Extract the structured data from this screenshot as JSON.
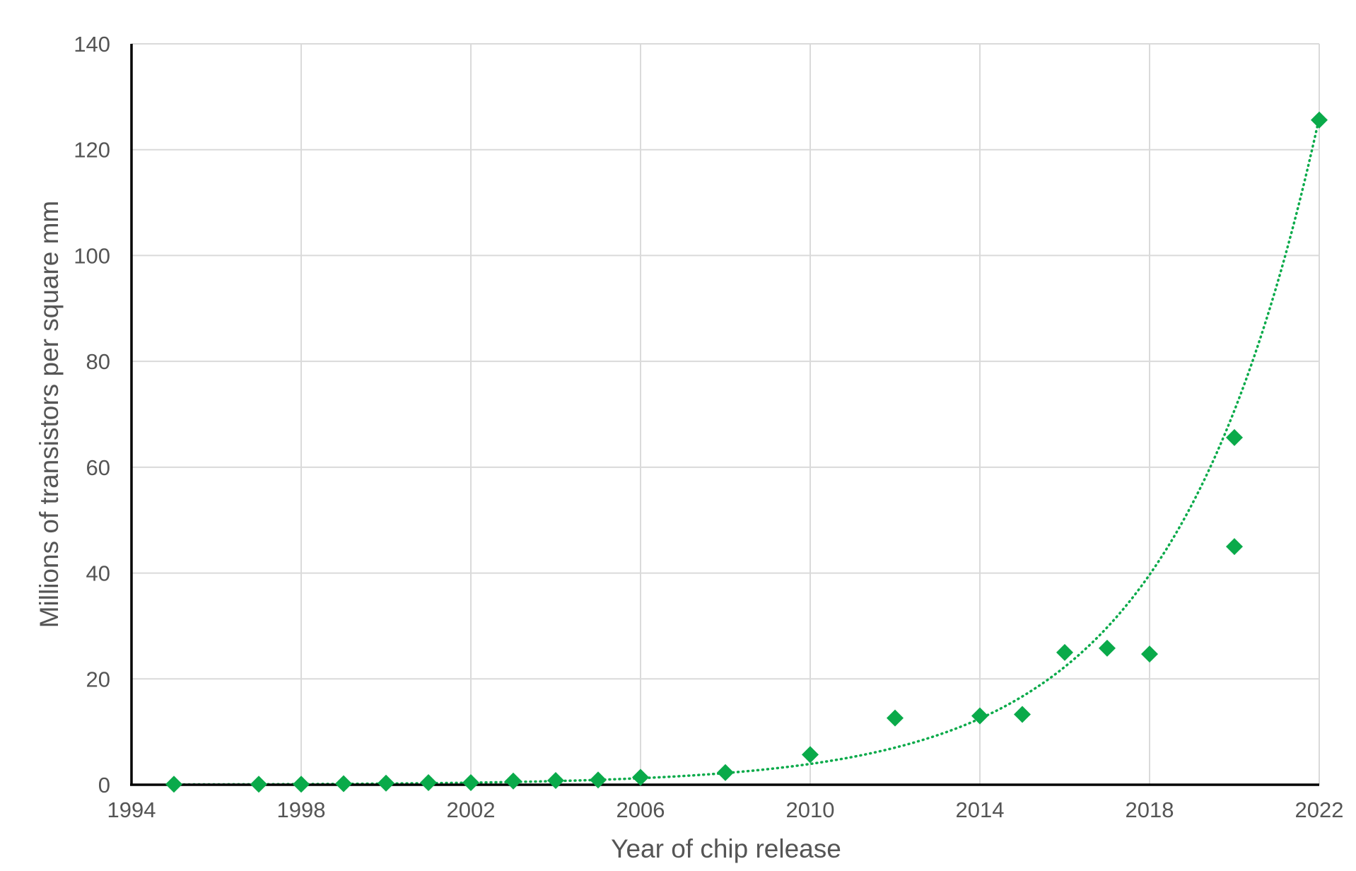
{
  "chart_data": {
    "type": "scatter",
    "title": "",
    "xlabel": "Year of chip release",
    "ylabel": "Millions of transistors per square mm",
    "xlim": [
      1994,
      2022
    ],
    "ylim": [
      0,
      140
    ],
    "x_ticks": [
      1994,
      1998,
      2002,
      2006,
      2010,
      2014,
      2018,
      2022
    ],
    "y_ticks": [
      0,
      20,
      40,
      60,
      80,
      100,
      120,
      140
    ],
    "grid": true,
    "marker": "diamond",
    "colors": {
      "points": "#0aaa4a",
      "trendline": "#0aaa4a",
      "grid": "#dadada",
      "axis": "#000000",
      "text": "#555555"
    },
    "series": [
      {
        "points": [
          {
            "x": 1995,
            "y": 0.1
          },
          {
            "x": 1997,
            "y": 0.1
          },
          {
            "x": 1998,
            "y": 0.1
          },
          {
            "x": 1999,
            "y": 0.2
          },
          {
            "x": 2000,
            "y": 0.3
          },
          {
            "x": 2001,
            "y": 0.4
          },
          {
            "x": 2002,
            "y": 0.4
          },
          {
            "x": 2003,
            "y": 0.7
          },
          {
            "x": 2004,
            "y": 0.8
          },
          {
            "x": 2005,
            "y": 0.9
          },
          {
            "x": 2006,
            "y": 1.4
          },
          {
            "x": 2008,
            "y": 2.3
          },
          {
            "x": 2010,
            "y": 5.7
          },
          {
            "x": 2012,
            "y": 12.6
          },
          {
            "x": 2014,
            "y": 13.0
          },
          {
            "x": 2015,
            "y": 13.3
          },
          {
            "x": 2016,
            "y": 25.0
          },
          {
            "x": 2017,
            "y": 25.8
          },
          {
            "x": 2018,
            "y": 24.7
          },
          {
            "x": 2020,
            "y": 45.0
          },
          {
            "x": 2020,
            "y": 65.6
          },
          {
            "x": 2022,
            "y": 125.6
          }
        ]
      }
    ],
    "trendline": {
      "type": "exponential",
      "points": [
        {
          "x": 1995,
          "y": 0.062
        },
        {
          "x": 2006,
          "y": 0.96
        },
        {
          "x": 2010,
          "y": 3.6
        },
        {
          "x": 2014,
          "y": 12.5
        },
        {
          "x": 2018,
          "y": 42.0
        },
        {
          "x": 2022,
          "y": 140
        }
      ]
    }
  }
}
